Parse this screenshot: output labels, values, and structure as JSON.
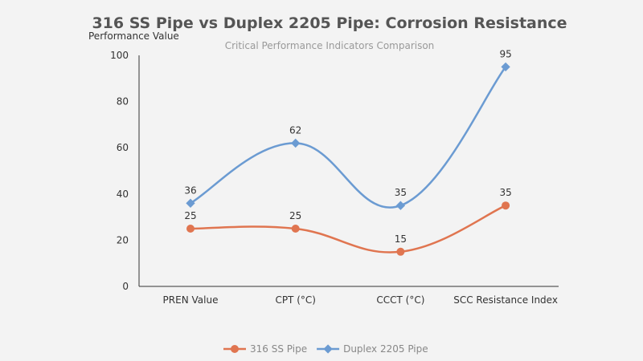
{
  "chart_data": {
    "type": "line",
    "title": "316 SS Pipe vs Duplex 2205 Pipe: Corrosion Resistance",
    "subtitle": "Critical Performance Indicators Comparison",
    "ylabel": "Performance Value",
    "xlabel": "",
    "ylim": [
      0,
      100
    ],
    "yticks": [
      "0",
      "20",
      "40",
      "60",
      "80",
      "100"
    ],
    "categories": [
      "PREN Value",
      "CPT (°C)",
      "CCCT (°C)",
      "SCC Resistance Index"
    ],
    "grid": false,
    "legend": "bottom",
    "smooth": true,
    "series": [
      {
        "name": "316 SS Pipe",
        "values": [
          25,
          25,
          15,
          35
        ],
        "color": "#e07550",
        "marker": "circle"
      },
      {
        "name": "Duplex 2205 Pipe",
        "values": [
          36,
          62,
          35,
          95
        ],
        "color": "#6b9bd2",
        "marker": "diamond"
      }
    ]
  }
}
